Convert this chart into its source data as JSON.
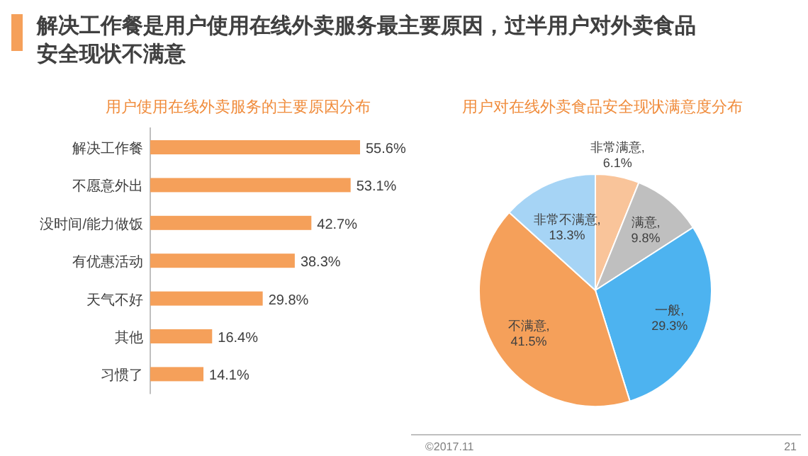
{
  "chart_data": [
    {
      "type": "other",
      "title": "解决工作餐是用户使用在线外卖服务最主要原因，过半用户对外卖食品安全现状不满意",
      "annotations": [
        "©2017.11",
        "21"
      ]
    },
    {
      "type": "bar",
      "orientation": "horizontal",
      "title": "用户使用在线外卖服务的主要原因分布",
      "categories": [
        "解决工作餐",
        "不愿意外出",
        "没时间/能力做饭",
        "有优惠活动",
        "天气不好",
        "其他",
        "习惯了"
      ],
      "values": [
        55.6,
        53.1,
        42.7,
        38.3,
        29.8,
        16.4,
        14.1
      ],
      "value_labels": [
        "55.6%",
        "53.1%",
        "42.7%",
        "38.3%",
        "29.8%",
        "16.4%",
        "14.1%"
      ],
      "color": "#f5a05a"
    },
    {
      "type": "pie",
      "title": "用户对在线外卖食品安全现状满意度分布",
      "categories": [
        "非常满意",
        "满意",
        "一般",
        "不满意",
        "非常不满意"
      ],
      "values": [
        6.1,
        9.8,
        29.3,
        41.5,
        13.3
      ],
      "value_labels": [
        ", 6.1%",
        ", 9.8%",
        ", 29.3%",
        ", 41.5%",
        ", 13.3%"
      ],
      "colors": [
        "#f9c49a",
        "#bfbfbf",
        "#4db3f0",
        "#f5a05a",
        "#a6d4f5"
      ]
    }
  ]
}
